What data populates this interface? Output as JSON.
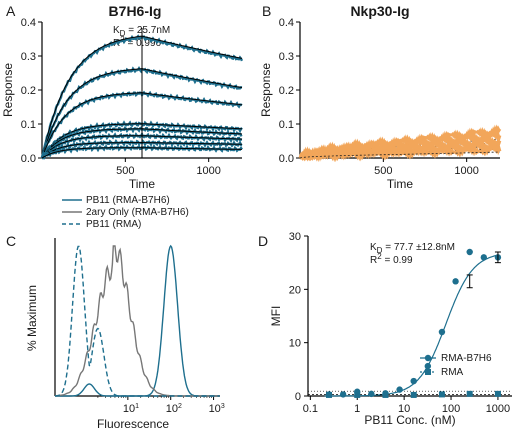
{
  "figure": {
    "panels": {
      "A": {
        "letter": "A",
        "title": "B7H6-Ig",
        "kd": "K",
        "kd_sub": "D",
        "kd_value": " = 25.7nM",
        "r2": "R",
        "r2_sup": "2",
        "r2_value": " = 0.996",
        "xlabel": "Time",
        "ylabel": "Response"
      },
      "B": {
        "letter": "B",
        "title": "Nkp30-Ig",
        "xlabel": "Time",
        "ylabel": "Response"
      },
      "C": {
        "letter": "C",
        "xlabel": "Fluorescence",
        "ylabel": "% Maximum",
        "legend": [
          "PB11 (RMA-B7H6)",
          "2ary  Only (RMA-B7H6)",
          "PB11 (RMA)"
        ]
      },
      "D": {
        "letter": "D",
        "kd": "K",
        "kd_sub": "D",
        "kd_value": " = 77.7 ±12.8nM",
        "r2": "R",
        "r2_sup": "2",
        "r2_value": " = 0.99",
        "xlabel": "PB11 Conc. (nM)",
        "ylabel": "MFI",
        "legend": [
          "RMA-B7H6",
          "RMA"
        ]
      }
    },
    "colors": {
      "teal": "#1e6f8e",
      "orange": "#f2a65a",
      "gray": "#777777",
      "black": "#000000"
    }
  },
  "chart_data": [
    {
      "id": "A",
      "type": "line",
      "title": "B7H6-Ig",
      "xlabel": "Time",
      "ylabel": "Response",
      "xlim": [
        0,
        1200
      ],
      "ylim": [
        0,
        0.4
      ],
      "xticks": [
        500,
        1000
      ],
      "yticks": [
        0.0,
        0.1,
        0.2,
        0.3,
        0.4
      ],
      "dissociation_start": 600,
      "series": [
        {
          "plateau_at_600": 0.355,
          "end_value": 0.29
        },
        {
          "plateau_at_600": 0.26,
          "end_value": 0.205
        },
        {
          "plateau_at_600": 0.19,
          "end_value": 0.155
        },
        {
          "plateau_at_600": 0.1,
          "end_value": 0.085
        },
        {
          "plateau_at_600": 0.085,
          "end_value": 0.07
        },
        {
          "plateau_at_600": 0.065,
          "end_value": 0.055
        },
        {
          "plateau_at_600": 0.045,
          "end_value": 0.04
        },
        {
          "plateau_at_600": 0.03,
          "end_value": 0.025
        }
      ]
    },
    {
      "id": "B",
      "type": "line",
      "title": "Nkp30-Ig",
      "xlabel": "Time",
      "ylabel": "Response",
      "xlim": [
        0,
        1200
      ],
      "ylim": [
        0,
        0.4
      ],
      "xticks": [
        500,
        1000
      ],
      "yticks": [
        0.0,
        0.1,
        0.2,
        0.3,
        0.4
      ],
      "series": [
        {
          "at_600": 0.048,
          "end_value": 0.08
        },
        {
          "at_600": 0.04,
          "end_value": 0.065
        },
        {
          "at_600": 0.03,
          "end_value": 0.05
        },
        {
          "at_600": 0.022,
          "end_value": 0.038
        },
        {
          "at_600": 0.015,
          "end_value": 0.025
        }
      ]
    },
    {
      "id": "C",
      "type": "line",
      "xlabel": "Fluorescence",
      "ylabel": "% Maximum",
      "xscale": "log",
      "xticks_exp": [
        1,
        2,
        3
      ],
      "series": [
        {
          "name": "PB11 (RMA-B7H6)",
          "style": "solid-teal",
          "peak_log10": 2.0,
          "width": 0.16
        },
        {
          "name": "2ary  Only (RMA-B7H6)",
          "style": "solid-gray",
          "peak_log10": 0.65,
          "width": 0.38
        },
        {
          "name": "PB11 (RMA)",
          "style": "dashed-teal",
          "peak_log10": -0.15,
          "width": 0.14
        }
      ]
    },
    {
      "id": "D",
      "type": "scatter",
      "xlabel": "PB11 Conc. (nM)",
      "ylabel": "MFI",
      "xscale": "log",
      "xlim": [
        0.1,
        1000
      ],
      "ylim": [
        0,
        30
      ],
      "xticks": [
        "0.1",
        "1",
        "10",
        "100",
        "1000"
      ],
      "yticks": [
        0,
        10,
        20,
        30
      ],
      "series": [
        {
          "name": "RMA-B7H6",
          "marker": "circle",
          "x": [
            0.25,
            0.5,
            1,
            2,
            4,
            8,
            16,
            32,
            64,
            125,
            250,
            500,
            1000
          ],
          "y": [
            0.3,
            0.3,
            0.8,
            0.4,
            0.5,
            1.2,
            2.8,
            5.6,
            12,
            21.5,
            27,
            26,
            26
          ]
        },
        {
          "name": "RMA",
          "marker": "square",
          "x": [
            0.25,
            1,
            4,
            16,
            64,
            250,
            1000
          ],
          "y": [
            0.2,
            0.2,
            0.2,
            0.2,
            0.3,
            0.4,
            0.4
          ]
        }
      ]
    }
  ]
}
